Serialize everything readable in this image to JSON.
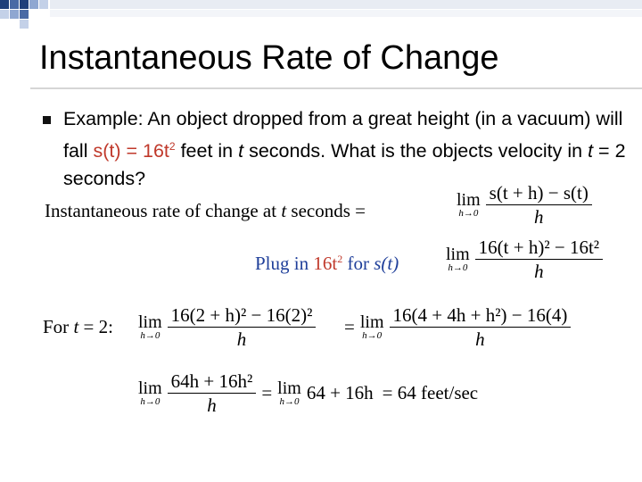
{
  "title": "Instantaneous Rate of Change",
  "example_parts": {
    "p1": "Example: An object dropped from a great height (in a vacuum) will fall ",
    "s_fn": "s(t) = 16t",
    "sq": "2",
    "p2": " feet in ",
    "t1": "t",
    "p3": " seconds. What is the objects velocity in ",
    "t2": "t",
    "p4": " = 2 seconds?"
  },
  "rate_label": {
    "a": "Instantaneous rate of change at ",
    "t": "t",
    "b": " seconds ="
  },
  "plug_label": {
    "a": "Plug in ",
    "val": "16t",
    "sq": "2",
    "b": " for ",
    "s": "s(t)"
  },
  "for_label": {
    "a": "For ",
    "t": "t",
    "b": " = 2:"
  },
  "lim_word": "lim",
  "lim_sub": "h→0",
  "eq1": {
    "num": "s(t + h) − s(t)",
    "den": "h"
  },
  "eq2": {
    "num": "16(t + h)² − 16t²",
    "den": "h"
  },
  "eq3": {
    "num": "16(2 + h)² − 16(2)²",
    "den": "h"
  },
  "eq4": {
    "num": "16(4 + 4h + h²) − 16(4)",
    "den": "h"
  },
  "eq5": {
    "num": "64h + 16h²",
    "den": "h"
  },
  "eq6": {
    "expr": "64 + 16h"
  },
  "eq_sign": "=",
  "result": "= 64  feet/sec"
}
